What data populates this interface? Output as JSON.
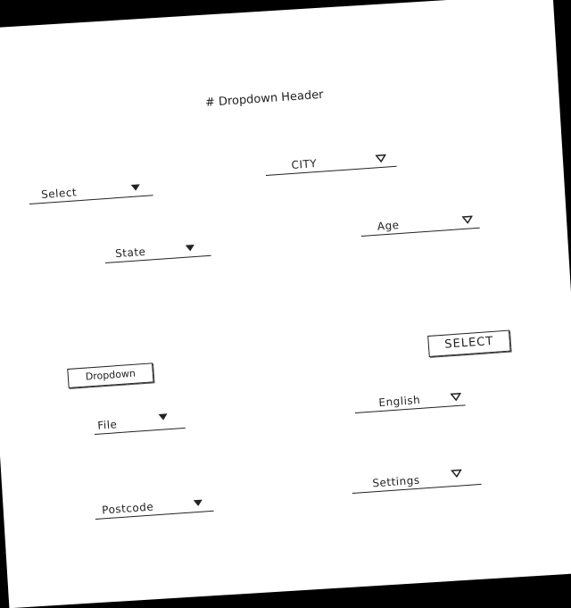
{
  "header": {
    "title": "# Dropdown Header"
  },
  "dropdowns": [
    {
      "label": "CITY"
    },
    {
      "label": "Select"
    },
    {
      "label": "State"
    },
    {
      "label": "Age"
    },
    {
      "label": "English"
    },
    {
      "label": "File"
    },
    {
      "label": "Settings"
    },
    {
      "label": "Postcode"
    }
  ],
  "buttons": [
    {
      "label": "SELECT"
    },
    {
      "label": "Dropdown"
    }
  ]
}
